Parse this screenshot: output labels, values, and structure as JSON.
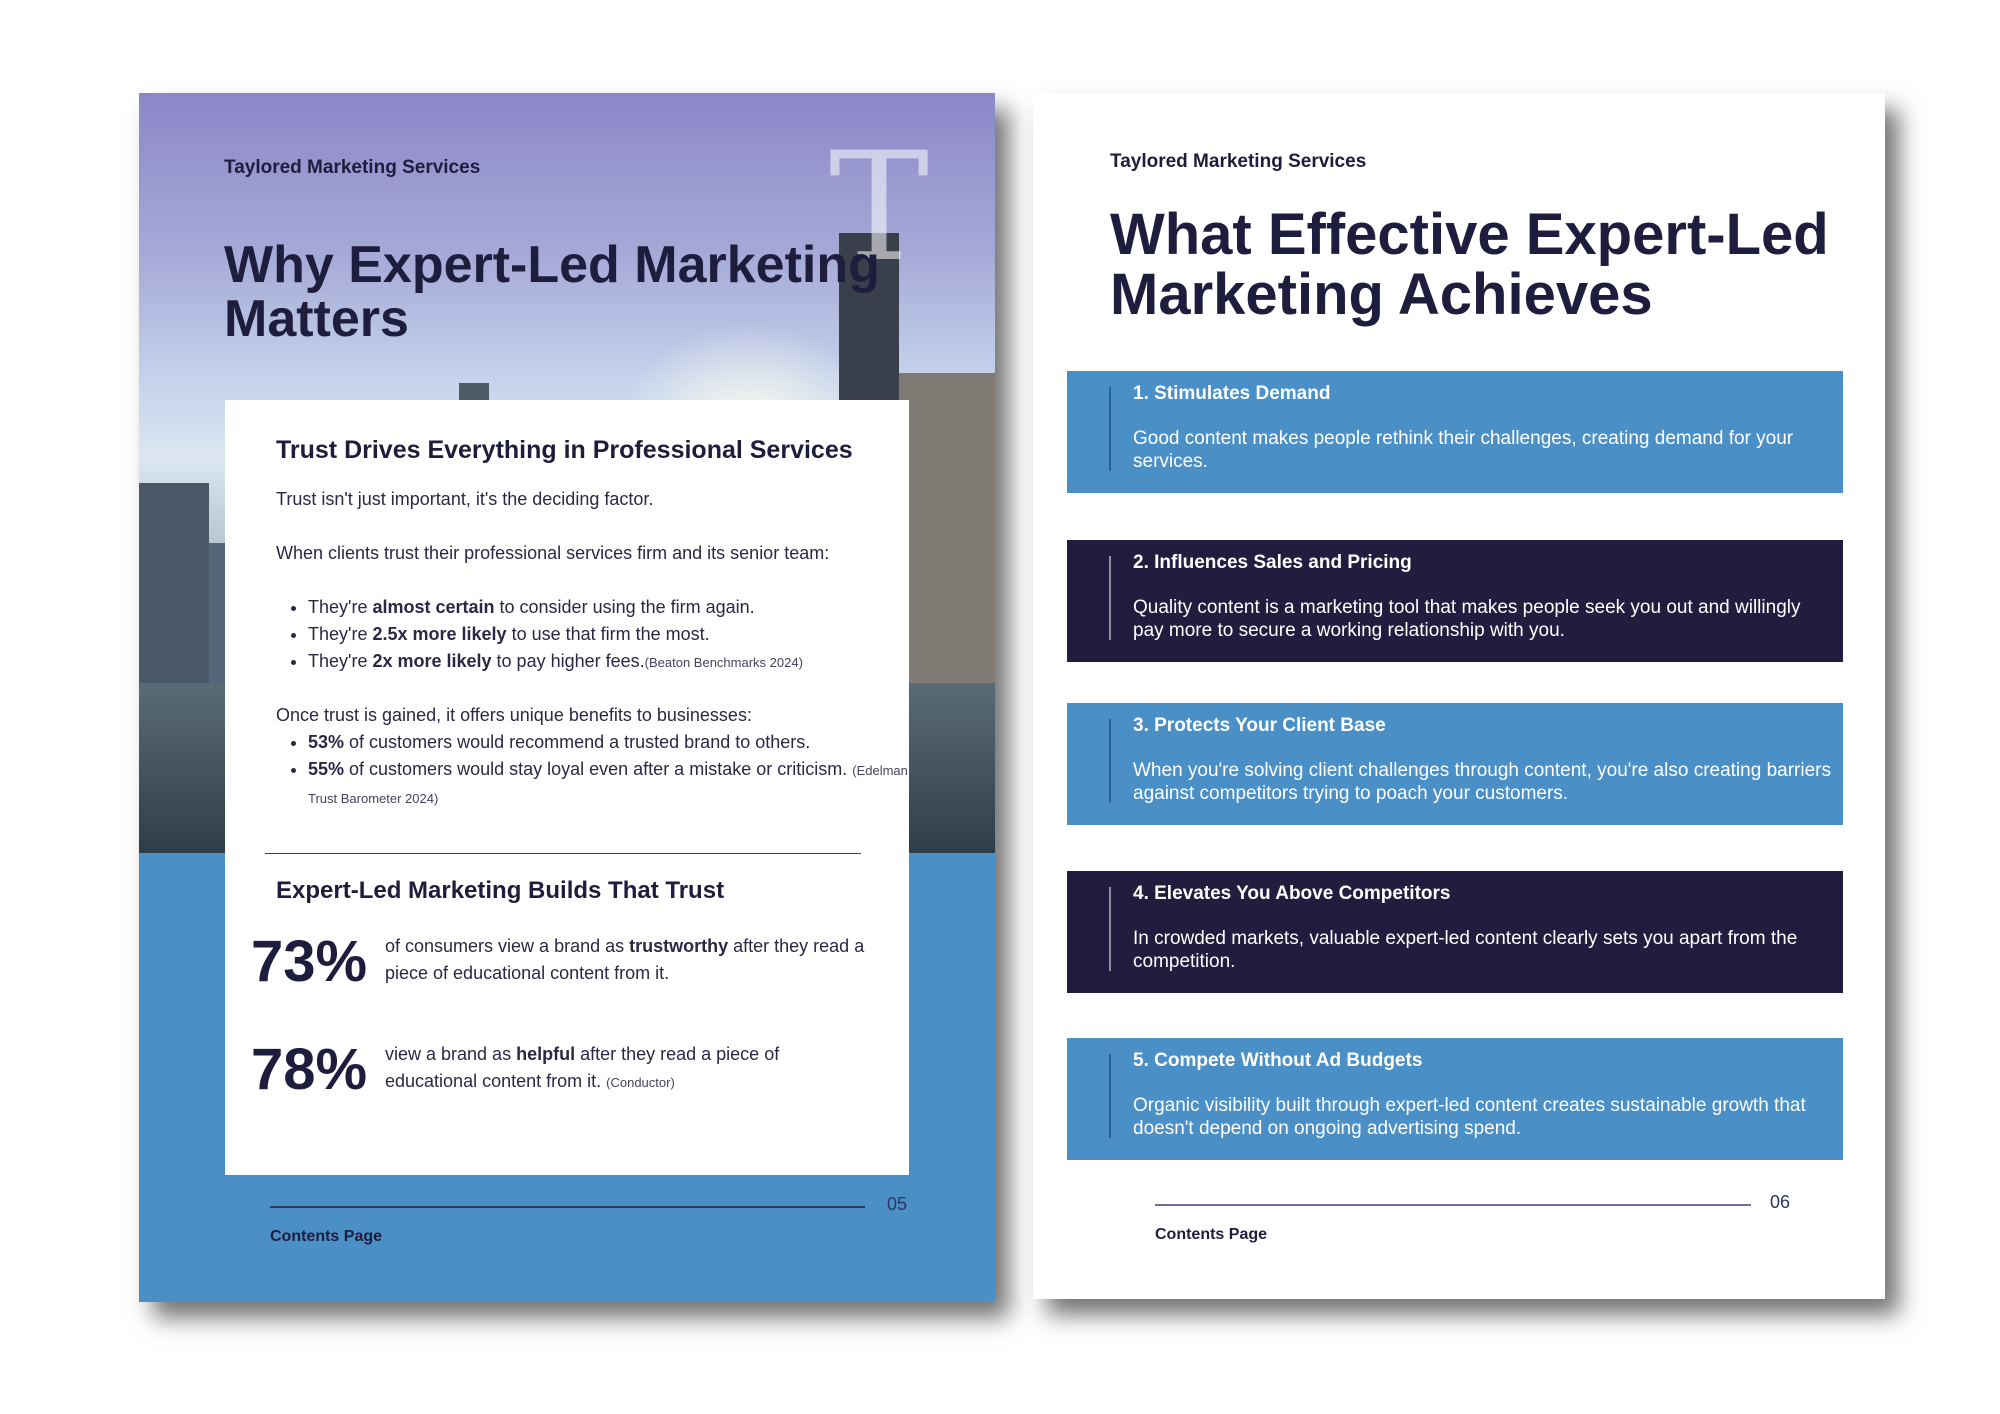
{
  "left_page": {
    "brand": "Taylored Marketing Services",
    "monogram": "T",
    "title": "Why Expert-Led Marketing Matters",
    "card": {
      "heading1": "Trust Drives Everything in Professional Services",
      "intro": "Trust isn't just important, it's the deciding factor.",
      "lead1": "When clients trust their professional services firm and its senior team:",
      "bullets1": [
        {
          "pre": "They're ",
          "bold": "almost certain",
          "post": " to consider using the firm again.",
          "cite": ""
        },
        {
          "pre": "They're ",
          "bold": "2.5x more likely",
          "post": " to use that firm the most.",
          "cite": ""
        },
        {
          "pre": "They're ",
          "bold": "2x more likely",
          "post": " to pay higher fees.",
          "cite": "(Beaton Benchmarks 2024)"
        }
      ],
      "lead2": "Once trust is gained, it offers unique benefits to businesses:",
      "bullets2": [
        {
          "pre": "",
          "bold": "53%",
          "post": " of customers would recommend a trusted brand to others.",
          "cite": ""
        },
        {
          "pre": "",
          "bold": "55%",
          "post": " of customers would stay loyal even after a mistake or criticism.",
          "cite": "(Edelman Trust Barometer 2024)"
        }
      ],
      "heading2": "Expert-Led Marketing Builds That Trust",
      "stats": [
        {
          "number": "73%",
          "pre": "of consumers view a brand as ",
          "bold": "trustworthy",
          "post": " after they read a piece of educational content from it.",
          "cite": ""
        },
        {
          "number": "78%",
          "pre": "view a brand as ",
          "bold": "helpful",
          "post": " after they read a piece of educational content from it.",
          "cite": "(Conductor)"
        }
      ]
    },
    "page_number": "05",
    "footer_label": "Contents Page"
  },
  "right_page": {
    "brand": "Taylored Marketing Services",
    "title": "What Effective Expert-Led Marketing Achieves",
    "items": [
      {
        "title": "1. Stimulates Demand",
        "text": "Good content makes people rethink their challenges, creating demand for your services.",
        "style": "light"
      },
      {
        "title": "2. Influences Sales and Pricing",
        "text": "Quality content is a marketing tool that makes people seek you out and willingly pay more to secure a working relationship with you.",
        "style": "dark"
      },
      {
        "title": "3. Protects Your Client Base",
        "text": "When you're solving client challenges through content, you're also creating barriers against competitors trying to poach your customers.",
        "style": "light"
      },
      {
        "title": "4. Elevates You Above Competitors",
        "text": "In crowded markets, valuable expert-led content clearly sets you apart from the competition.",
        "style": "dark"
      },
      {
        "title": "5. Compete Without Ad Budgets",
        "text": "Organic visibility built through expert-led content creates sustainable growth that doesn't depend on ongoing advertising spend.",
        "style": "light"
      }
    ],
    "page_number": "06",
    "footer_label": "Contents Page"
  },
  "colors": {
    "navy": "#1f1d3d",
    "accent_blue": "#4a90c7",
    "dark_box": "#201d3e"
  }
}
